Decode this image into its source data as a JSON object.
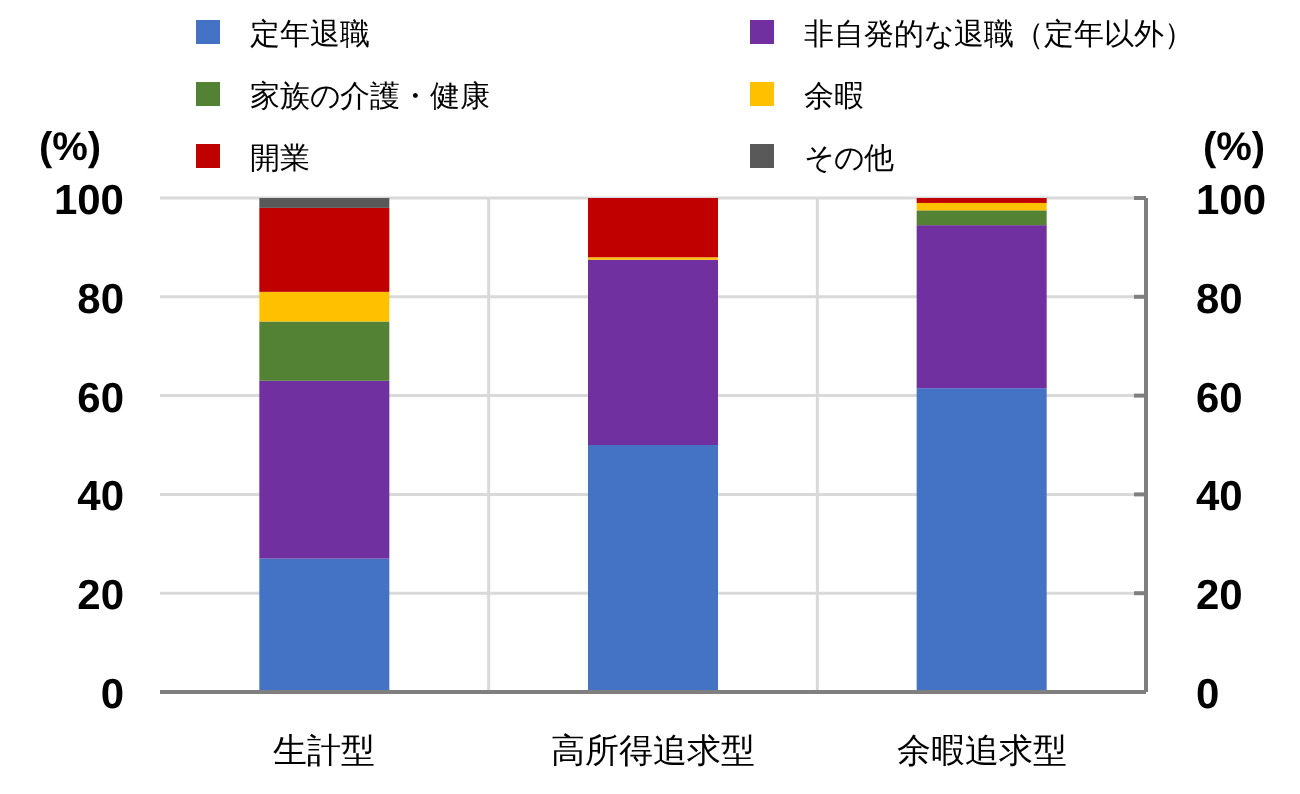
{
  "chart_data": {
    "type": "bar",
    "stacked": true,
    "categories": [
      "生計型",
      "高所得追求型",
      "余暇追求型"
    ],
    "series": [
      {
        "name": "定年退職",
        "color": "#4472c4",
        "values": [
          27,
          50,
          61.5
        ]
      },
      {
        "name": "非自発的な退職（定年以外）",
        "color": "#7030a0",
        "values": [
          36,
          37.5,
          33
        ]
      },
      {
        "name": "家族の介護・健康",
        "color": "#548235",
        "values": [
          12,
          0,
          3
        ]
      },
      {
        "name": "余暇",
        "color": "#ffc000",
        "values": [
          6,
          0.5,
          1.5
        ]
      },
      {
        "name": "開業",
        "color": "#c00000",
        "values": [
          17,
          12,
          1
        ]
      },
      {
        "name": "その他",
        "color": "#595959",
        "values": [
          2,
          0,
          0
        ]
      }
    ],
    "ylabel": "(%)",
    "y2label": "(%)",
    "ylim": [
      0,
      100
    ],
    "yticks": [
      0,
      20,
      40,
      60,
      80,
      100
    ],
    "y2lim": [
      0,
      100
    ],
    "y2ticks": [
      0,
      20,
      40,
      60,
      80,
      100
    ],
    "grid": true,
    "legend": "top"
  }
}
